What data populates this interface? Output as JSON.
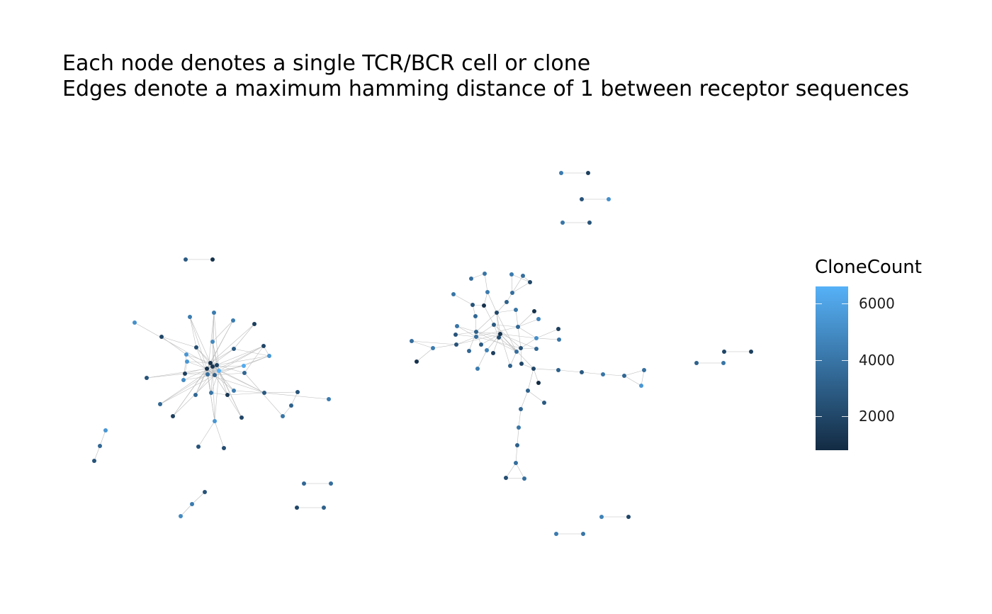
{
  "title": {
    "line1": "Each node denotes a single TCR/BCR cell or clone",
    "line2": "Edges denote a maximum hamming distance of 1 between receptor sequences"
  },
  "legend": {
    "title": "CloneCount",
    "ticks": [
      {
        "label": "6000",
        "value": 6000
      },
      {
        "label": "4000",
        "value": 4000
      },
      {
        "label": "2000",
        "value": 2000
      }
    ],
    "range": [
      800,
      6600
    ],
    "colors": {
      "low": "#132B43",
      "high": "#56B1F7"
    }
  },
  "edge_color": "#bdbdbd"
}
